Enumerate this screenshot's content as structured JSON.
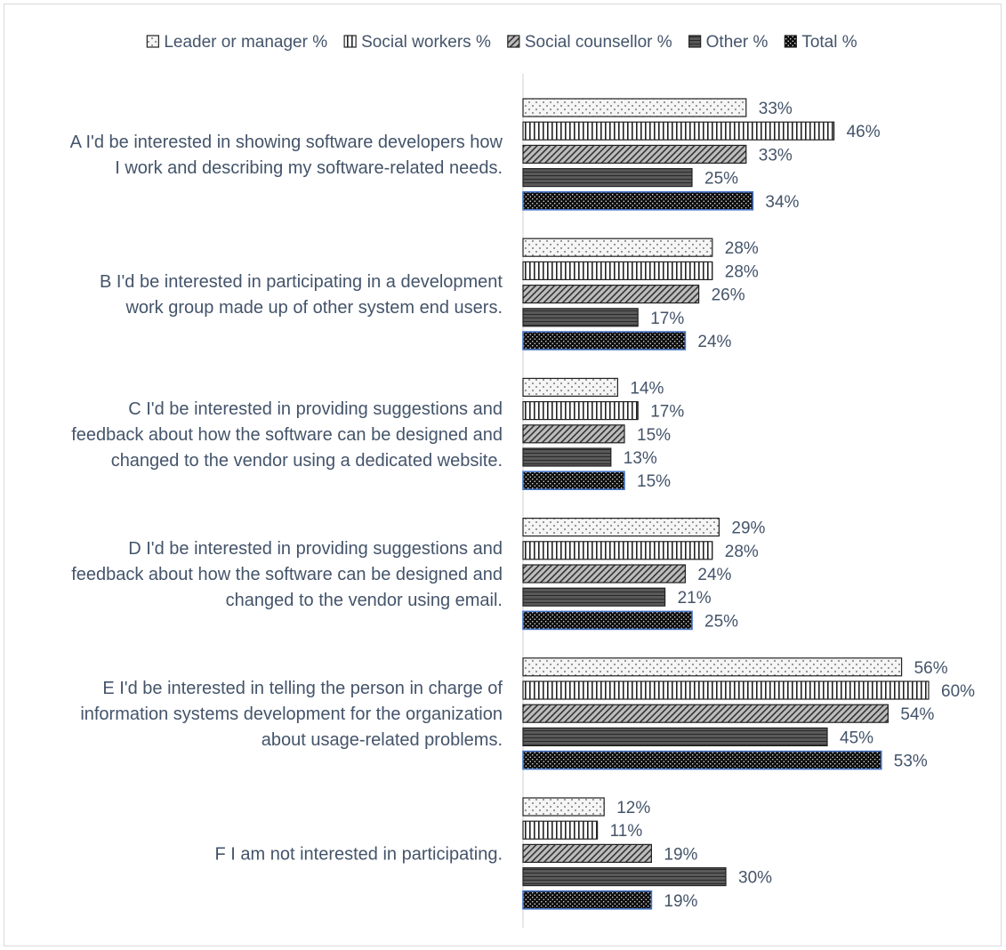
{
  "chart_data": {
    "type": "bar",
    "orientation": "horizontal",
    "title": "",
    "xlabel": "",
    "ylabel": "",
    "xlim": [
      0,
      65
    ],
    "grid": false,
    "legend_position": "top",
    "value_format": "percent",
    "categories": [
      [
        "A I'd be interested in showing software developers how",
        "I work and describing my software-related needs."
      ],
      [
        "B I'd be interested in participating in a development",
        "work group made up of other system end users."
      ],
      [
        "C I'd be interested in providing suggestions and",
        "feedback about how the software can be designed and",
        "changed to the vendor using a dedicated website."
      ],
      [
        "D I'd be interested in providing suggestions and",
        "feedback about how the software can be designed and",
        "changed to the vendor using email."
      ],
      [
        "E I'd be interested in telling the person in charge of",
        "information systems development for the organization",
        "about usage-related problems."
      ],
      [
        "F I am not interested in participating."
      ]
    ],
    "series": [
      {
        "name": "Leader or manager %",
        "pattern": "dots-sparse",
        "color": "#f2f2f2",
        "stroke": "#222222",
        "values": [
          33,
          28,
          14,
          29,
          56,
          12
        ]
      },
      {
        "name": "Social workers %",
        "pattern": "vertical-lines",
        "color": "#ffffff",
        "stroke": "#222222",
        "values": [
          46,
          28,
          17,
          28,
          60,
          11
        ]
      },
      {
        "name": "Social counsellor %",
        "pattern": "diagonal",
        "color": "#bfbfbf",
        "stroke": "#222222",
        "values": [
          33,
          26,
          15,
          24,
          54,
          19
        ]
      },
      {
        "name": "Other %",
        "pattern": "horizontal-lines",
        "color": "#595959",
        "stroke": "#222222",
        "values": [
          25,
          17,
          13,
          21,
          45,
          30
        ]
      },
      {
        "name": "Total %",
        "pattern": "dots-dense",
        "color": "#111111",
        "stroke": "#4472c4",
        "values": [
          34,
          24,
          15,
          25,
          53,
          19
        ]
      }
    ]
  }
}
